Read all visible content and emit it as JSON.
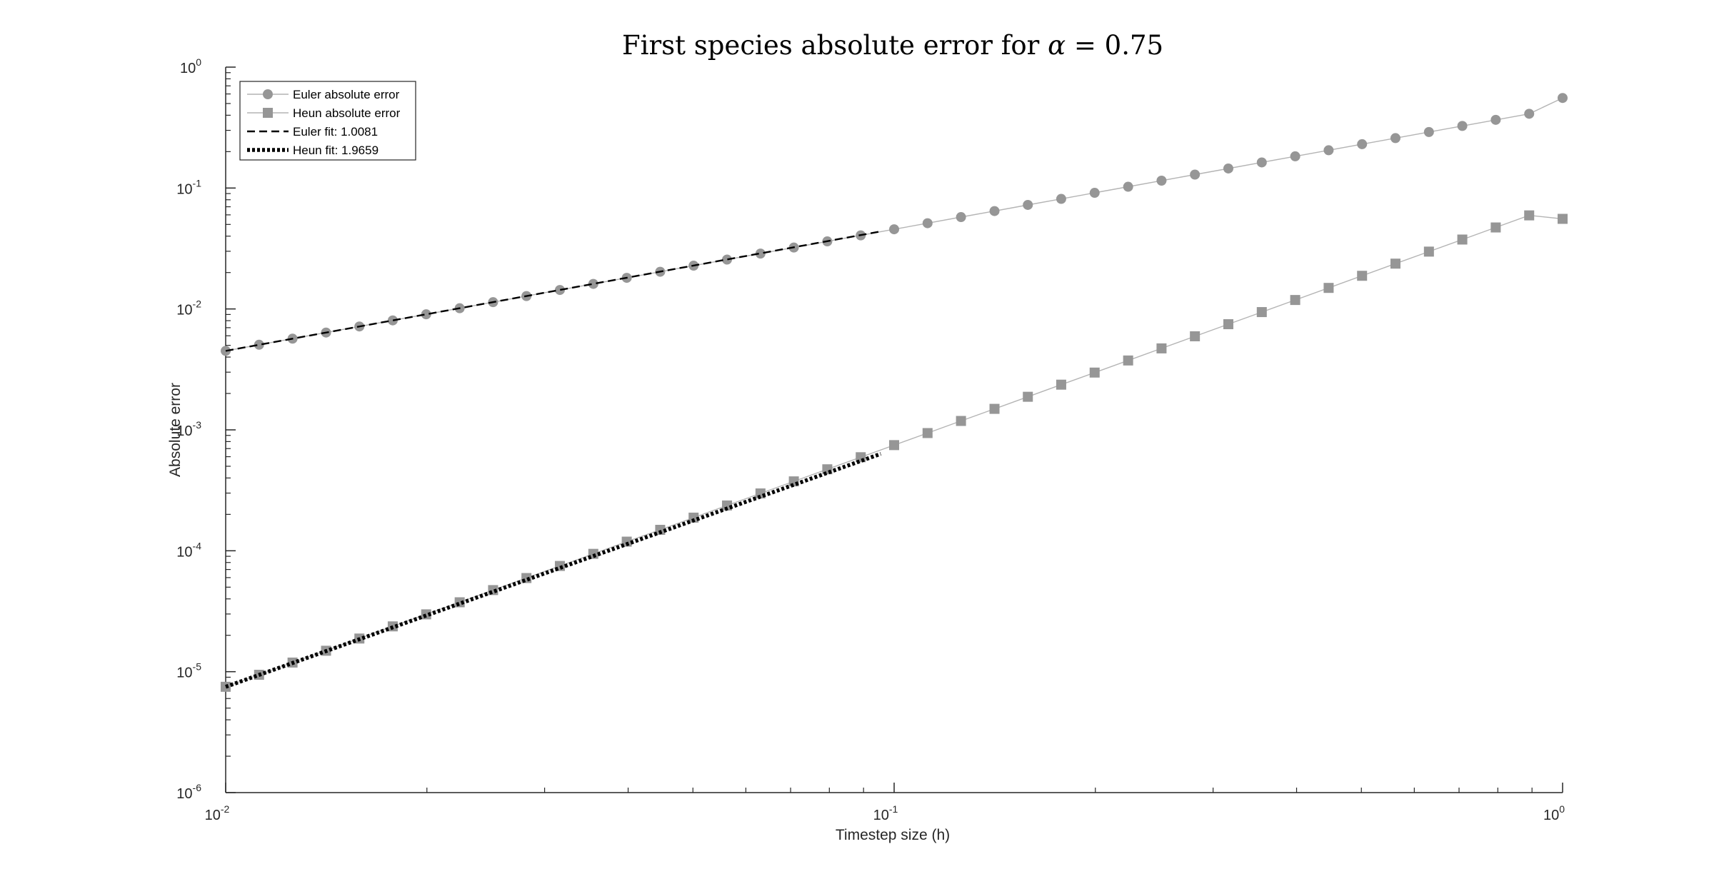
{
  "chart_data": {
    "type": "line",
    "title_prefix": "First species absolute error for ",
    "title_symbol": "α",
    "title_suffix": " = 0.75",
    "xlabel": "Timestep size (h)",
    "ylabel": "Absolute error",
    "xscale": "log",
    "yscale": "log",
    "xlim": [
      0.01,
      1
    ],
    "ylim": [
      1e-06,
      1
    ],
    "grid": false,
    "legend_position": "top-left",
    "x_ticks": [
      {
        "base": "10",
        "exp": "-2",
        "value": 0.01
      },
      {
        "base": "10",
        "exp": "-1",
        "value": 0.1
      },
      {
        "base": "10",
        "exp": "0",
        "value": 1
      }
    ],
    "y_ticks": [
      {
        "base": "10",
        "exp": "-6",
        "value": 1e-06
      },
      {
        "base": "10",
        "exp": "-5",
        "value": 1e-05
      },
      {
        "base": "10",
        "exp": "-4",
        "value": 0.0001
      },
      {
        "base": "10",
        "exp": "-3",
        "value": 0.001
      },
      {
        "base": "10",
        "exp": "-2",
        "value": 0.01
      },
      {
        "base": "10",
        "exp": "-1",
        "value": 0.1
      },
      {
        "base": "10",
        "exp": "0",
        "value": 1
      }
    ],
    "x": [
      0.01,
      0.01122,
      0.01259,
      0.01413,
      0.01585,
      0.01778,
      0.01995,
      0.02239,
      0.02512,
      0.02818,
      0.03162,
      0.03548,
      0.03981,
      0.04467,
      0.05012,
      0.05623,
      0.0631,
      0.07079,
      0.07943,
      0.08913,
      0.1,
      0.1122,
      0.1259,
      0.1413,
      0.1585,
      0.1778,
      0.1995,
      0.2239,
      0.2512,
      0.2818,
      0.3162,
      0.3548,
      0.3981,
      0.4467,
      0.5012,
      0.5623,
      0.631,
      0.7079,
      0.7943,
      0.8913,
      1.0
    ],
    "series": [
      {
        "name": "Euler absolute error",
        "marker": "circle",
        "color": "#969696",
        "values": [
          0.0045,
          0.00506,
          0.00568,
          0.00638,
          0.00716,
          0.00804,
          0.00903,
          0.01014,
          0.01138,
          0.01278,
          0.01435,
          0.01611,
          0.01809,
          0.0203,
          0.0228,
          0.0256,
          0.0287,
          0.0322,
          0.0362,
          0.0406,
          0.0456,
          0.0512,
          0.0575,
          0.0645,
          0.0725,
          0.0813,
          0.0913,
          0.1025,
          0.1151,
          0.1292,
          0.1451,
          0.1629,
          0.1829,
          0.2053,
          0.2305,
          0.2588,
          0.2906,
          0.3262,
          0.3663,
          0.4112,
          0.5556
        ]
      },
      {
        "name": "Heun absolute error",
        "marker": "square",
        "color": "#969696",
        "values": [
          7.5e-06,
          9.43e-06,
          1.19e-05,
          1.49e-05,
          1.88e-05,
          2.37e-05,
          2.98e-05,
          3.75e-05,
          4.73e-05,
          5.95e-05,
          7.49e-05,
          9.43e-05,
          0.000119,
          0.000149,
          0.000188,
          0.000237,
          0.000298,
          0.000375,
          0.000472,
          0.000594,
          0.000748,
          0.000941,
          0.001185,
          0.001492,
          0.001878,
          0.002365,
          0.002977,
          0.003748,
          0.004719,
          0.005941,
          0.00748,
          0.00942,
          0.01186,
          0.01493,
          0.0188,
          0.0237,
          0.0298,
          0.0375,
          0.0472,
          0.0594,
          0.0556
        ]
      },
      {
        "name": "Euler fit: 1.0081",
        "line_style": "dashed",
        "color": "#000000",
        "x_range": [
          0.01,
          0.0955
        ],
        "slope": 1.0081,
        "anchor_y": 0.0045
      },
      {
        "name": "Heun fit: 1.9659",
        "line_style": "dotted",
        "color": "#000000",
        "x_range": [
          0.01,
          0.0955
        ],
        "slope": 1.9659,
        "anchor_y": 7.5e-06
      }
    ]
  }
}
